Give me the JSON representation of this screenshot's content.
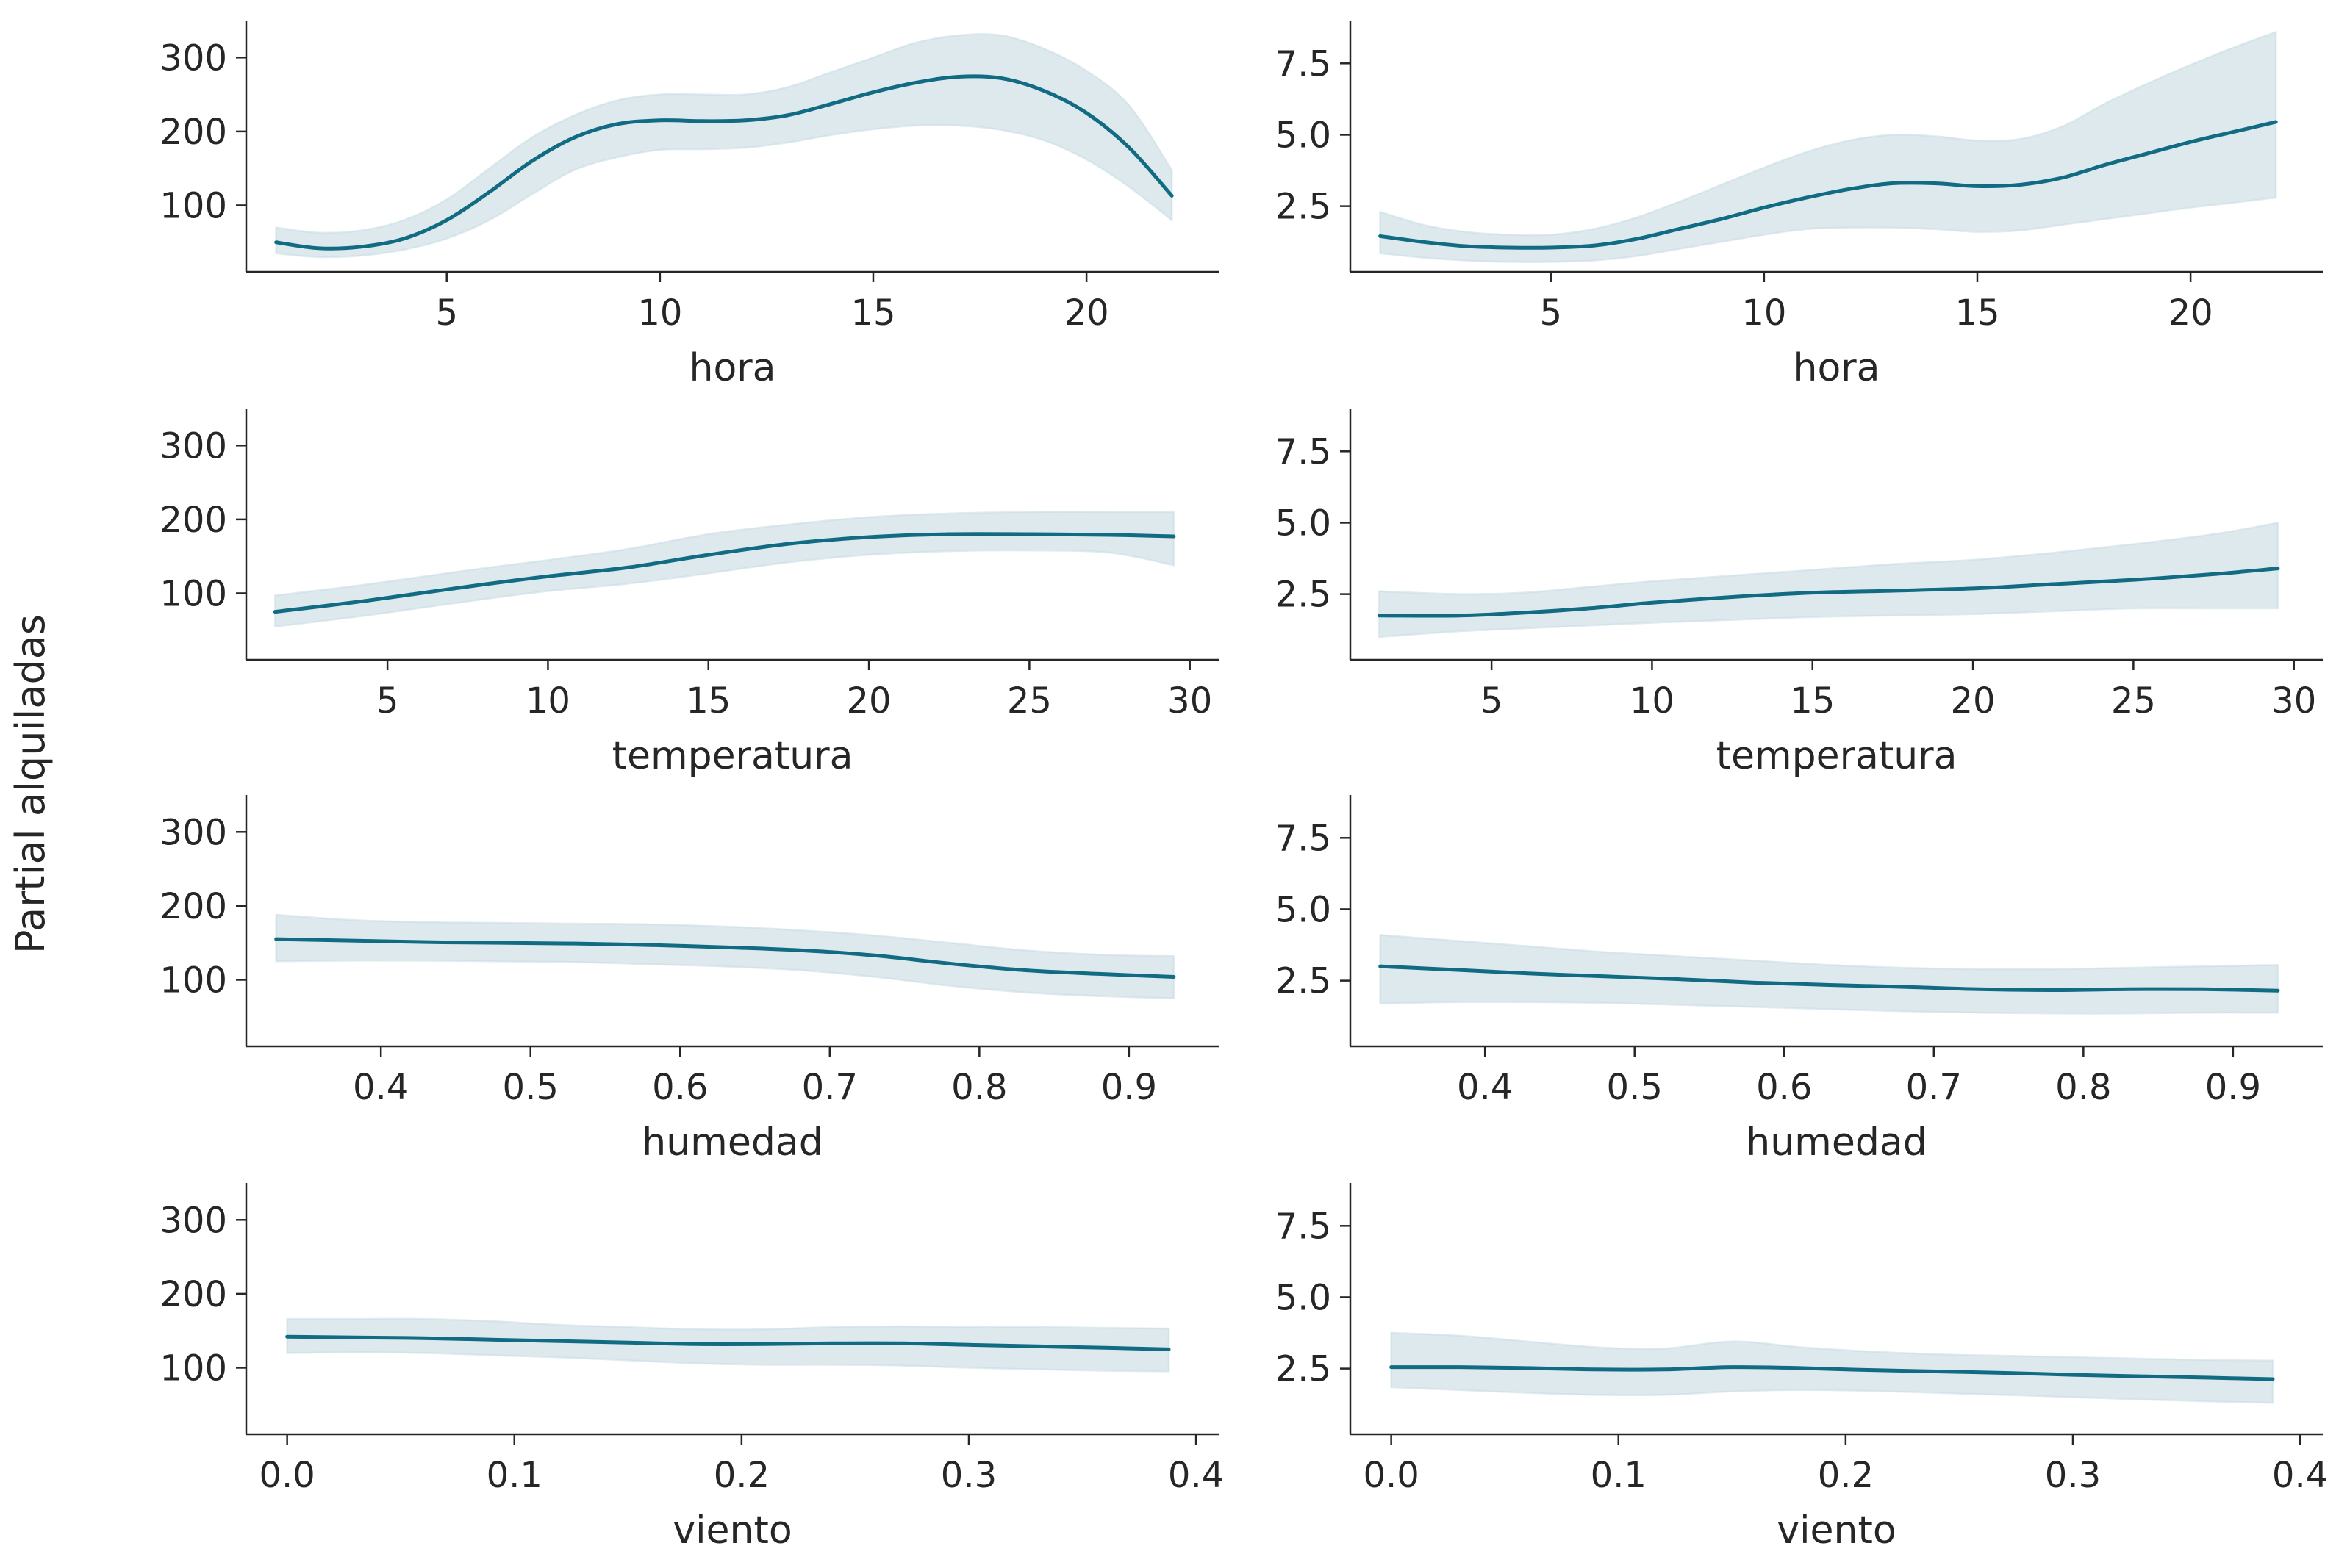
{
  "figure": {
    "ylabel": "Partial alquiladas",
    "colors": {
      "line": "#106b83",
      "band": "#dde9ed",
      "axis": "#262626"
    }
  },
  "chart_data": [
    {
      "type": "line",
      "row": 0,
      "col": 0,
      "xlabel": "hora",
      "xlim": [
        0.3,
        23.1
      ],
      "ylim": [
        10,
        350
      ],
      "xticks": [
        5,
        10,
        15,
        20
      ],
      "xtick_labels": [
        "5",
        "10",
        "15",
        "20"
      ],
      "yticks": [
        100,
        200,
        300
      ],
      "ytick_labels": [
        "100",
        "200",
        "300"
      ],
      "x": [
        1,
        2,
        3,
        4,
        5,
        6,
        7,
        8,
        9,
        10,
        11,
        12,
        13,
        14,
        15,
        16,
        17,
        18,
        19,
        20,
        21,
        22
      ],
      "y": [
        50,
        42,
        44,
        55,
        80,
        118,
        160,
        192,
        210,
        215,
        214,
        215,
        222,
        237,
        253,
        266,
        274,
        272,
        255,
        225,
        178,
        113
      ],
      "lower": [
        35,
        30,
        32,
        40,
        55,
        80,
        115,
        148,
        165,
        175,
        176,
        178,
        185,
        195,
        203,
        208,
        208,
        202,
        188,
        162,
        125,
        80
      ],
      "upper": [
        70,
        63,
        66,
        80,
        108,
        150,
        192,
        222,
        242,
        250,
        250,
        250,
        260,
        280,
        300,
        320,
        330,
        330,
        312,
        282,
        235,
        148
      ]
    },
    {
      "type": "line",
      "row": 0,
      "col": 1,
      "xlabel": "hora",
      "xlim": [
        0.3,
        23.1
      ],
      "ylim": [
        0.2,
        9.0
      ],
      "xticks": [
        5,
        10,
        15,
        20
      ],
      "xtick_labels": [
        "5",
        "10",
        "15",
        "20"
      ],
      "yticks": [
        2.5,
        5.0,
        7.5
      ],
      "ytick_labels": [
        "2.5",
        "5.0",
        "7.5"
      ],
      "x": [
        1,
        2,
        3,
        4,
        5,
        6,
        7,
        8,
        9,
        10,
        11,
        12,
        13,
        14,
        15,
        16,
        17,
        18,
        19,
        20,
        21,
        22
      ],
      "y": [
        1.45,
        1.25,
        1.1,
        1.05,
        1.05,
        1.12,
        1.35,
        1.7,
        2.05,
        2.45,
        2.8,
        3.1,
        3.3,
        3.3,
        3.2,
        3.25,
        3.5,
        3.95,
        4.35,
        4.75,
        5.1,
        5.45
      ],
      "lower": [
        0.85,
        0.7,
        0.6,
        0.55,
        0.55,
        0.6,
        0.75,
        1.0,
        1.25,
        1.5,
        1.7,
        1.75,
        1.75,
        1.7,
        1.6,
        1.65,
        1.85,
        2.05,
        2.25,
        2.45,
        2.62,
        2.8
      ],
      "upper": [
        2.3,
        1.85,
        1.6,
        1.5,
        1.5,
        1.7,
        2.1,
        2.65,
        3.25,
        3.85,
        4.4,
        4.8,
        5.0,
        4.95,
        4.8,
        4.85,
        5.3,
        6.1,
        6.8,
        7.45,
        8.05,
        8.6
      ]
    },
    {
      "type": "line",
      "row": 1,
      "col": 0,
      "xlabel": "temperatura",
      "xlim": [
        0.6,
        30.9
      ],
      "ylim": [
        10,
        350
      ],
      "xticks": [
        5,
        10,
        15,
        20,
        25,
        30
      ],
      "xtick_labels": [
        "5",
        "10",
        "15",
        "20",
        "25",
        "30"
      ],
      "yticks": [
        100,
        200,
        300
      ],
      "ytick_labels": [
        "100",
        "200",
        "300"
      ],
      "x": [
        1.5,
        4,
        6,
        8,
        10,
        12.5,
        15,
        17.5,
        20,
        22.5,
        25,
        27.5,
        29.5
      ],
      "y": [
        75,
        88,
        100,
        112,
        123,
        135,
        152,
        167,
        176,
        180,
        180,
        179,
        177
      ],
      "lower": [
        55,
        68,
        80,
        92,
        103,
        113,
        127,
        142,
        152,
        157,
        158,
        155,
        138
      ],
      "upper": [
        97,
        110,
        122,
        134,
        145,
        160,
        180,
        193,
        203,
        208,
        210,
        210,
        210
      ]
    },
    {
      "type": "line",
      "row": 1,
      "col": 1,
      "xlabel": "temperatura",
      "xlim": [
        0.6,
        30.9
      ],
      "ylim": [
        0.2,
        9.0
      ],
      "xticks": [
        5,
        10,
        15,
        20,
        25,
        30
      ],
      "xtick_labels": [
        "5",
        "10",
        "15",
        "20",
        "25",
        "30"
      ],
      "yticks": [
        2.5,
        5.0,
        7.5
      ],
      "ytick_labels": [
        "2.5",
        "5.0",
        "7.5"
      ],
      "x": [
        1.5,
        4,
        6,
        8,
        10,
        12.5,
        15,
        17.5,
        20,
        22.5,
        25,
        27.5,
        29.5
      ],
      "y": [
        1.75,
        1.75,
        1.85,
        2.0,
        2.2,
        2.4,
        2.55,
        2.62,
        2.7,
        2.85,
        3.0,
        3.2,
        3.4
      ],
      "lower": [
        1.0,
        1.2,
        1.3,
        1.4,
        1.5,
        1.6,
        1.7,
        1.75,
        1.8,
        1.9,
        2.0,
        2.0,
        2.0
      ],
      "upper": [
        2.6,
        2.5,
        2.55,
        2.75,
        2.95,
        3.15,
        3.35,
        3.55,
        3.7,
        3.95,
        4.25,
        4.6,
        5.0
      ]
    },
    {
      "type": "line",
      "row": 2,
      "col": 0,
      "xlabel": "humedad",
      "xlim": [
        0.31,
        0.96
      ],
      "ylim": [
        10,
        350
      ],
      "xticks": [
        0.4,
        0.5,
        0.6,
        0.7,
        0.8,
        0.9
      ],
      "xtick_labels": [
        "0.4",
        "0.5",
        "0.6",
        "0.7",
        "0.8",
        "0.9"
      ],
      "yticks": [
        100,
        200,
        300
      ],
      "ytick_labels": [
        "100",
        "200",
        "300"
      ],
      "x": [
        0.33,
        0.38,
        0.43,
        0.48,
        0.53,
        0.58,
        0.63,
        0.68,
        0.73,
        0.78,
        0.83,
        0.88,
        0.93
      ],
      "y": [
        155,
        153,
        151,
        150,
        149,
        147,
        144,
        140,
        133,
        122,
        113,
        108,
        104
      ],
      "lower": [
        125,
        126,
        126,
        125,
        124,
        121,
        118,
        113,
        104,
        92,
        83,
        78,
        75
      ],
      "upper": [
        188,
        181,
        178,
        177,
        176,
        175,
        172,
        167,
        160,
        150,
        140,
        134,
        132
      ]
    },
    {
      "type": "line",
      "row": 2,
      "col": 1,
      "xlabel": "humedad",
      "xlim": [
        0.31,
        0.96
      ],
      "ylim": [
        0.2,
        9.0
      ],
      "xticks": [
        0.4,
        0.5,
        0.6,
        0.7,
        0.8,
        0.9
      ],
      "xtick_labels": [
        "0.4",
        "0.5",
        "0.6",
        "0.7",
        "0.8",
        "0.9"
      ],
      "yticks": [
        2.5,
        5.0,
        7.5
      ],
      "ytick_labels": [
        "2.5",
        "5.0",
        "7.5"
      ],
      "x": [
        0.33,
        0.38,
        0.43,
        0.48,
        0.53,
        0.58,
        0.63,
        0.68,
        0.73,
        0.78,
        0.83,
        0.88,
        0.93
      ],
      "y": [
        3.0,
        2.88,
        2.75,
        2.65,
        2.55,
        2.43,
        2.35,
        2.28,
        2.2,
        2.17,
        2.2,
        2.2,
        2.15
      ],
      "lower": [
        1.7,
        1.75,
        1.75,
        1.72,
        1.65,
        1.58,
        1.5,
        1.43,
        1.38,
        1.35,
        1.35,
        1.38,
        1.38
      ],
      "upper": [
        4.1,
        3.9,
        3.7,
        3.5,
        3.35,
        3.2,
        3.05,
        2.95,
        2.9,
        2.9,
        2.95,
        3.0,
        3.05
      ]
    },
    {
      "type": "line",
      "row": 3,
      "col": 0,
      "xlabel": "viento",
      "xlim": [
        -0.018,
        0.41
      ],
      "ylim": [
        10,
        350
      ],
      "xticks": [
        0.0,
        0.1,
        0.2,
        0.3,
        0.4
      ],
      "xtick_labels": [
        "0.0",
        "0.1",
        "0.2",
        "0.3",
        "0.4"
      ],
      "yticks": [
        100,
        200,
        300
      ],
      "ytick_labels": [
        "100",
        "200",
        "300"
      ],
      "x": [
        0.0,
        0.03,
        0.06,
        0.09,
        0.12,
        0.15,
        0.18,
        0.21,
        0.24,
        0.27,
        0.3,
        0.33,
        0.36,
        0.388
      ],
      "y": [
        142,
        141,
        140,
        138,
        136,
        134,
        132,
        132,
        133,
        133,
        131,
        129,
        127,
        125
      ],
      "lower": [
        120,
        121,
        120,
        117,
        114,
        110,
        106,
        104,
        104,
        103,
        100,
        98,
        96,
        95
      ],
      "upper": [
        166,
        166,
        166,
        163,
        158,
        155,
        152,
        152,
        155,
        156,
        155,
        155,
        154,
        153
      ]
    },
    {
      "type": "line",
      "row": 3,
      "col": 1,
      "xlabel": "viento",
      "xlim": [
        -0.018,
        0.41
      ],
      "ylim": [
        0.2,
        9.0
      ],
      "xticks": [
        0.0,
        0.1,
        0.2,
        0.3,
        0.4
      ],
      "xtick_labels": [
        "0.0",
        "0.1",
        "0.2",
        "0.3",
        "0.4"
      ],
      "yticks": [
        2.5,
        5.0,
        7.5
      ],
      "ytick_labels": [
        "2.5",
        "5.0",
        "7.5"
      ],
      "x": [
        0.0,
        0.03,
        0.06,
        0.09,
        0.12,
        0.15,
        0.18,
        0.21,
        0.24,
        0.27,
        0.3,
        0.33,
        0.36,
        0.388
      ],
      "y": [
        2.55,
        2.55,
        2.52,
        2.47,
        2.47,
        2.55,
        2.52,
        2.45,
        2.4,
        2.35,
        2.28,
        2.23,
        2.18,
        2.13
      ],
      "lower": [
        1.85,
        1.75,
        1.65,
        1.58,
        1.58,
        1.7,
        1.75,
        1.72,
        1.65,
        1.58,
        1.5,
        1.42,
        1.35,
        1.3
      ],
      "upper": [
        3.75,
        3.65,
        3.45,
        3.25,
        3.2,
        3.45,
        3.25,
        3.1,
        3.0,
        2.95,
        2.9,
        2.85,
        2.8,
        2.78
      ]
    }
  ]
}
